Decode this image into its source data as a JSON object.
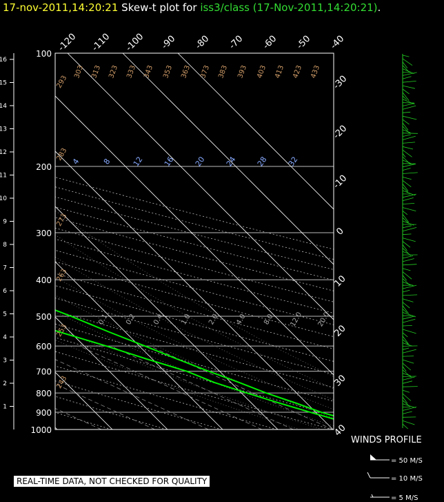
{
  "title": {
    "date": "17-nov-2011,14:20:21",
    "prefix": "Skew-t plot for",
    "station": "iss3/class (17-Nov-2011,14:20:21)",
    "suffix": "."
  },
  "disclaimer": "REAL-TIME DATA, NOT CHECKED FOR QUALITY",
  "colors": {
    "background": "#000000",
    "title_date": "#ffff33",
    "title_station": "#33dd33",
    "profile": "#00ee00",
    "wind": "#22cc22",
    "isotherm": "#ffffff",
    "dry_adiabat_label": "#cc9966",
    "moist_adiabat_label": "#88aaff",
    "mixing_ratio_label": "#aaaaaa"
  },
  "chart_data": {
    "type": "line",
    "kind": "skew-t",
    "pressure_axis": {
      "label_values": [
        100,
        200,
        300,
        400,
        500,
        600,
        700,
        800,
        900,
        1000
      ],
      "range": [
        100,
        1000
      ],
      "scale": "log"
    },
    "height_axis": {
      "unit": "km",
      "ticks": [
        1,
        2,
        3,
        4,
        5,
        6,
        7,
        8,
        9,
        10,
        11,
        12,
        13,
        14,
        15,
        16
      ]
    },
    "temperature_top_labels": [
      "-120",
      "-110",
      "-100",
      "-90",
      "-80",
      "-70",
      "-60",
      "-50",
      "-40"
    ],
    "temperature_right_labels": [
      "-30",
      "-20",
      "-10",
      "0",
      "10",
      "20",
      "30",
      "40"
    ],
    "dry_adiabat_labels": [
      "303",
      "313",
      "323",
      "333",
      "343",
      "353",
      "363",
      "373",
      "383",
      "393",
      "403",
      "413",
      "423",
      "433",
      "293",
      "283",
      "273",
      "263",
      "253",
      "243"
    ],
    "moist_adiabat_labels": [
      "4",
      "8",
      "12",
      "16",
      "20",
      "24",
      "28",
      "32"
    ],
    "mixing_ratio_labels": [
      "0.1",
      "0.2",
      "0.4",
      "1.0",
      "2.0",
      "4.0",
      "8.0",
      "12.0",
      "20.0"
    ],
    "series": [
      {
        "role": "temperature",
        "points": [
          [
            1000,
            18
          ],
          [
            950,
            15
          ],
          [
            900,
            11
          ],
          [
            850,
            8
          ],
          [
            800,
            4.5
          ],
          [
            750,
            1.5
          ],
          [
            700,
            -2
          ],
          [
            650,
            -5.5
          ],
          [
            600,
            -9
          ],
          [
            550,
            -13
          ],
          [
            500,
            -17
          ],
          [
            450,
            -22
          ],
          [
            400,
            -28
          ],
          [
            350,
            -34
          ],
          [
            300,
            -42
          ],
          [
            250,
            -50
          ],
          [
            200,
            -55
          ],
          [
            150,
            -59
          ],
          [
            120,
            -62
          ],
          [
            100,
            -66
          ]
        ]
      },
      {
        "role": "dewpoint",
        "points": [
          [
            1000,
            16
          ],
          [
            950,
            13
          ],
          [
            900,
            9
          ],
          [
            850,
            5
          ],
          [
            800,
            1
          ],
          [
            750,
            -3
          ],
          [
            700,
            -6
          ],
          [
            650,
            -11
          ],
          [
            600,
            -16
          ],
          [
            550,
            -22
          ],
          [
            500,
            -28
          ],
          [
            450,
            -36
          ],
          [
            400,
            -40
          ],
          [
            350,
            -45
          ],
          [
            320,
            -50
          ],
          [
            300,
            -52
          ],
          [
            280,
            -58
          ],
          [
            260,
            -66
          ],
          [
            240,
            -72
          ],
          [
            220,
            -72
          ],
          [
            200,
            -70
          ],
          [
            190,
            -72
          ],
          [
            170,
            -75
          ],
          [
            150,
            -82
          ],
          [
            130,
            -88
          ],
          [
            120,
            -90
          ],
          [
            100,
            -95
          ]
        ]
      }
    ],
    "wind_legend": [
      "= 50 M/S",
      "= 10 M/S",
      "= 5 M/S"
    ],
    "wind_title": "WINDS PROFILE"
  }
}
